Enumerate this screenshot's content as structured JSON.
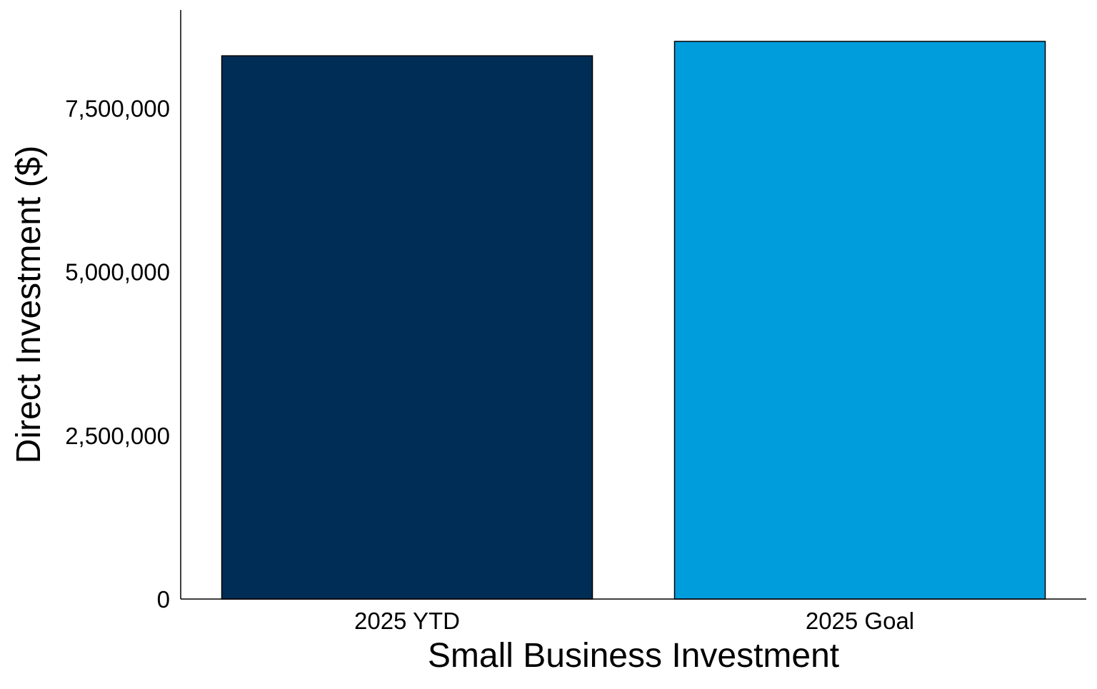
{
  "chart_data": {
    "type": "bar",
    "title": "",
    "xlabel": "Small Business Investment",
    "ylabel": "Direct Investment ($)",
    "categories": [
      "2025 YTD",
      "2025 Goal"
    ],
    "values": [
      8300000,
      8520000
    ],
    "ylim": [
      0,
      9000000
    ],
    "yticks": [
      0,
      2500000,
      5000000,
      7500000
    ],
    "ytick_labels": [
      "0",
      "2,500,000",
      "5,000,000",
      "7,500,000"
    ],
    "colors": [
      "#002D56",
      "#009DDC"
    ],
    "bar_outline_color": "#000000",
    "grid": false,
    "legend": "none"
  }
}
